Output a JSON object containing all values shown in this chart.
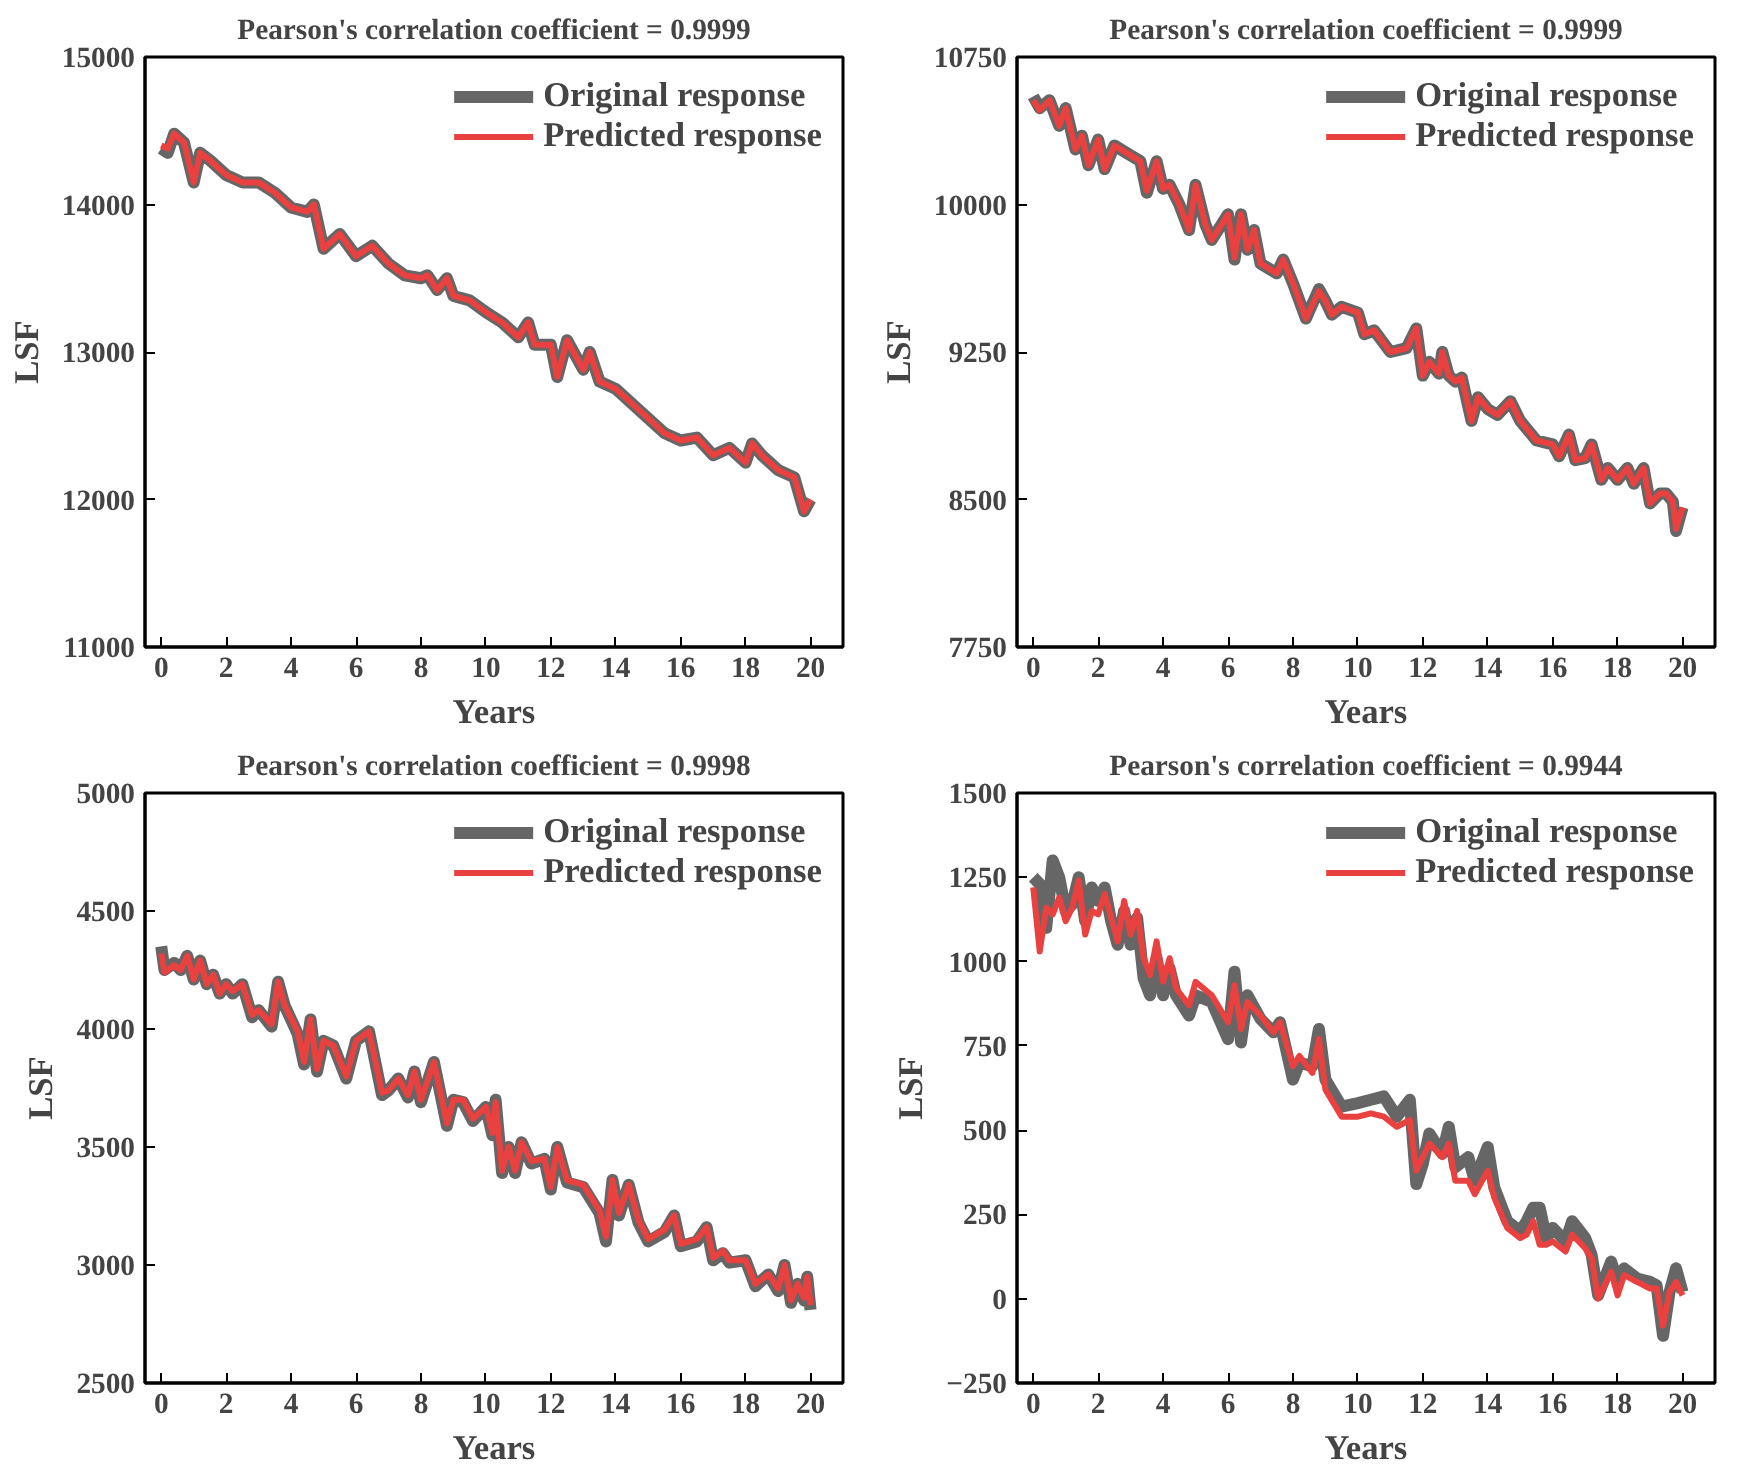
{
  "chart_data": [
    {
      "type": "line",
      "title": "Pearson's correlation coefficient = 0.9999",
      "xlabel": "Years",
      "ylabel": "LSF",
      "xlim": [
        -0.5,
        21
      ],
      "ylim": [
        11000,
        15000
      ],
      "xticks": [
        0,
        2,
        4,
        6,
        8,
        10,
        12,
        14,
        16,
        18,
        20
      ],
      "yticks": [
        11000,
        12000,
        13000,
        14000,
        15000
      ],
      "legend": "top right",
      "grid": false,
      "line_style": "solid",
      "series": [
        {
          "name": "Original response",
          "color": "#666666",
          "x": [
            0,
            0.2,
            0.4,
            0.7,
            1,
            1.2,
            1.5,
            2,
            2.5,
            3,
            3.5,
            4,
            4.5,
            4.7,
            5,
            5.5,
            6,
            6.5,
            7,
            7.5,
            8,
            8.2,
            8.5,
            8.8,
            9,
            9.5,
            10,
            10.5,
            11,
            11.3,
            11.5,
            12,
            12.2,
            12.5,
            13,
            13.2,
            13.5,
            14,
            14.5,
            15,
            15.5,
            16,
            16.5,
            17,
            17.5,
            18,
            18.2,
            18.5,
            19,
            19.5,
            19.8,
            20
          ],
          "values": [
            14380,
            14350,
            14480,
            14420,
            14150,
            14350,
            14300,
            14200,
            14150,
            14150,
            14080,
            13980,
            13950,
            14000,
            13700,
            13800,
            13650,
            13720,
            13600,
            13520,
            13500,
            13520,
            13420,
            13500,
            13380,
            13350,
            13270,
            13200,
            13100,
            13200,
            13050,
            13050,
            12830,
            13080,
            12880,
            13000,
            12800,
            12750,
            12650,
            12550,
            12450,
            12400,
            12420,
            12300,
            12350,
            12250,
            12380,
            12300,
            12200,
            12150,
            11920,
            12000
          ]
        },
        {
          "name": "Predicted response",
          "color": "#e8413f",
          "x": [
            0,
            0.2,
            0.4,
            0.7,
            1,
            1.2,
            1.5,
            2,
            2.5,
            3,
            3.5,
            4,
            4.5,
            4.7,
            5,
            5.5,
            6,
            6.5,
            7,
            7.5,
            8,
            8.2,
            8.5,
            8.8,
            9,
            9.5,
            10,
            10.5,
            11,
            11.3,
            11.5,
            12,
            12.2,
            12.5,
            13,
            13.2,
            13.5,
            14,
            14.5,
            15,
            15.5,
            16,
            16.5,
            17,
            17.5,
            18,
            18.2,
            18.5,
            19,
            19.5,
            19.8,
            20
          ],
          "values": [
            14400,
            14380,
            14480,
            14420,
            14150,
            14350,
            14300,
            14200,
            14150,
            14150,
            14080,
            13980,
            13950,
            14000,
            13700,
            13800,
            13650,
            13720,
            13600,
            13520,
            13500,
            13520,
            13420,
            13500,
            13380,
            13350,
            13270,
            13200,
            13100,
            13200,
            13050,
            13050,
            12830,
            13080,
            12880,
            13000,
            12800,
            12750,
            12650,
            12550,
            12450,
            12400,
            12420,
            12300,
            12350,
            12250,
            12380,
            12300,
            12200,
            12150,
            11920,
            12000
          ]
        }
      ]
    },
    {
      "type": "line",
      "title": "Pearson's correlation coefficient = 0.9999",
      "xlabel": "Years",
      "ylabel": "LSF",
      "xlim": [
        -0.5,
        21
      ],
      "ylim": [
        7750,
        10750
      ],
      "xticks": [
        0,
        2,
        4,
        6,
        8,
        10,
        12,
        14,
        16,
        18,
        20
      ],
      "yticks": [
        7750,
        8500,
        9250,
        10000,
        10750
      ],
      "legend": "top right",
      "grid": false,
      "line_style": "solid",
      "series": [
        {
          "name": "Original response",
          "color": "#666666",
          "x": [
            0,
            0.2,
            0.5,
            0.8,
            1,
            1.3,
            1.5,
            1.7,
            2,
            2.2,
            2.5,
            3,
            3.3,
            3.5,
            3.8,
            4,
            4.2,
            4.5,
            4.8,
            5,
            5.3,
            5.5,
            6,
            6.2,
            6.4,
            6.6,
            6.8,
            7,
            7.5,
            7.7,
            8,
            8.4,
            8.8,
            9,
            9.2,
            9.5,
            10,
            10.2,
            10.5,
            11,
            11.5,
            11.8,
            12,
            12.2,
            12.5,
            12.6,
            12.8,
            13,
            13.2,
            13.5,
            13.7,
            14,
            14.3,
            14.7,
            15,
            15.5,
            16,
            16.2,
            16.5,
            16.7,
            17,
            17.2,
            17.5,
            17.7,
            18,
            18.3,
            18.5,
            18.8,
            19,
            19.3,
            19.5,
            19.7,
            19.8,
            20
          ],
          "values": [
            10550,
            10490,
            10530,
            10400,
            10490,
            10280,
            10350,
            10200,
            10330,
            10180,
            10300,
            10250,
            10220,
            10060,
            10220,
            10080,
            10100,
            10000,
            9870,
            10100,
            9900,
            9820,
            9950,
            9720,
            9950,
            9770,
            9870,
            9700,
            9650,
            9720,
            9600,
            9420,
            9570,
            9510,
            9440,
            9480,
            9450,
            9340,
            9360,
            9250,
            9270,
            9370,
            9130,
            9200,
            9140,
            9250,
            9130,
            9100,
            9120,
            8900,
            9020,
            8960,
            8930,
            9000,
            8900,
            8800,
            8780,
            8720,
            8830,
            8700,
            8710,
            8780,
            8600,
            8660,
            8600,
            8660,
            8580,
            8660,
            8480,
            8530,
            8530,
            8490,
            8340,
            8460
          ]
        },
        {
          "name": "Predicted response",
          "color": "#e8413f",
          "x": [
            0,
            0.2,
            0.5,
            0.8,
            1,
            1.3,
            1.5,
            1.7,
            2,
            2.2,
            2.5,
            3,
            3.3,
            3.5,
            3.8,
            4,
            4.2,
            4.5,
            4.8,
            5,
            5.3,
            5.5,
            6,
            6.2,
            6.4,
            6.6,
            6.8,
            7,
            7.5,
            7.7,
            8,
            8.4,
            8.8,
            9,
            9.2,
            9.5,
            10,
            10.2,
            10.5,
            11,
            11.5,
            11.8,
            12,
            12.2,
            12.5,
            12.6,
            12.8,
            13,
            13.2,
            13.5,
            13.7,
            14,
            14.3,
            14.7,
            15,
            15.5,
            16,
            16.2,
            16.5,
            16.7,
            17,
            17.2,
            17.5,
            17.7,
            18,
            18.3,
            18.5,
            18.8,
            19,
            19.3,
            19.5,
            19.7,
            19.8,
            20
          ],
          "values": [
            10530,
            10480,
            10530,
            10400,
            10490,
            10280,
            10350,
            10200,
            10330,
            10180,
            10300,
            10250,
            10220,
            10070,
            10220,
            10080,
            10100,
            10000,
            9870,
            10100,
            9900,
            9820,
            9950,
            9730,
            9950,
            9770,
            9870,
            9700,
            9650,
            9720,
            9600,
            9420,
            9560,
            9510,
            9440,
            9480,
            9450,
            9340,
            9360,
            9250,
            9270,
            9370,
            9130,
            9200,
            9140,
            9250,
            9130,
            9100,
            9120,
            8900,
            9020,
            8960,
            8930,
            9000,
            8900,
            8800,
            8780,
            8720,
            8830,
            8700,
            8710,
            8780,
            8600,
            8660,
            8600,
            8660,
            8580,
            8660,
            8480,
            8530,
            8530,
            8490,
            8350,
            8460
          ]
        }
      ]
    },
    {
      "type": "line",
      "title": "Pearson's correlation coefficient = 0.9998",
      "xlabel": "Years",
      "ylabel": "LSF",
      "xlim": [
        -0.5,
        21
      ],
      "ylim": [
        2500,
        5000
      ],
      "xticks": [
        0,
        2,
        4,
        6,
        8,
        10,
        12,
        14,
        16,
        18,
        20
      ],
      "yticks": [
        2500,
        3000,
        3500,
        4000,
        4500,
        5000
      ],
      "legend": "top right",
      "grid": false,
      "line_style": "solid",
      "series": [
        {
          "name": "Original response",
          "color": "#666666",
          "x": [
            0,
            0.1,
            0.4,
            0.6,
            0.8,
            1,
            1.2,
            1.4,
            1.6,
            1.8,
            2,
            2.2,
            2.5,
            2.8,
            3,
            3.4,
            3.6,
            3.8,
            4.2,
            4.4,
            4.6,
            4.8,
            5,
            5.3,
            5.7,
            6,
            6.4,
            6.8,
            7,
            7.3,
            7.6,
            7.8,
            8,
            8.4,
            8.8,
            9,
            9.3,
            9.6,
            10,
            10.2,
            10.3,
            10.5,
            10.7,
            10.9,
            11.1,
            11.4,
            11.8,
            12,
            12.2,
            12.5,
            13,
            13.5,
            13.7,
            13.9,
            14.1,
            14.4,
            14.7,
            15,
            15.5,
            15.8,
            16,
            16.5,
            16.8,
            17,
            17.3,
            17.5,
            18,
            18.3,
            18.7,
            19,
            19.2,
            19.4,
            19.6,
            19.8,
            19.9,
            20
          ],
          "values": [
            4350,
            4250,
            4280,
            4250,
            4310,
            4210,
            4290,
            4190,
            4230,
            4150,
            4190,
            4150,
            4190,
            4050,
            4080,
            4010,
            4200,
            4100,
            3980,
            3850,
            4040,
            3820,
            3950,
            3930,
            3790,
            3950,
            3990,
            3720,
            3740,
            3790,
            3710,
            3820,
            3690,
            3860,
            3590,
            3700,
            3690,
            3610,
            3670,
            3550,
            3700,
            3390,
            3500,
            3390,
            3520,
            3430,
            3450,
            3320,
            3500,
            3350,
            3330,
            3220,
            3100,
            3360,
            3210,
            3340,
            3180,
            3100,
            3140,
            3210,
            3080,
            3100,
            3160,
            3020,
            3050,
            3010,
            3020,
            2910,
            2960,
            2890,
            3000,
            2840,
            2920,
            2850,
            2950,
            2810
          ]
        },
        {
          "name": "Predicted response",
          "color": "#e8413f",
          "x": [
            0,
            0.1,
            0.4,
            0.6,
            0.8,
            1,
            1.2,
            1.4,
            1.6,
            1.8,
            2,
            2.2,
            2.5,
            2.8,
            3,
            3.4,
            3.6,
            3.8,
            4.2,
            4.4,
            4.6,
            4.8,
            5,
            5.3,
            5.7,
            6,
            6.4,
            6.8,
            7,
            7.3,
            7.6,
            7.8,
            8,
            8.4,
            8.8,
            9,
            9.3,
            9.6,
            10,
            10.2,
            10.3,
            10.5,
            10.7,
            10.9,
            11.1,
            11.4,
            11.8,
            12,
            12.2,
            12.5,
            13,
            13.5,
            13.7,
            13.9,
            14.1,
            14.4,
            14.7,
            15,
            15.5,
            15.8,
            16,
            16.5,
            16.8,
            17,
            17.3,
            17.5,
            18,
            18.3,
            18.7,
            19,
            19.2,
            19.4,
            19.6,
            19.8,
            19.9,
            20
          ],
          "values": [
            4320,
            4240,
            4270,
            4250,
            4310,
            4210,
            4290,
            4190,
            4230,
            4150,
            4190,
            4160,
            4190,
            4060,
            4080,
            4020,
            4200,
            4100,
            3990,
            3860,
            4040,
            3830,
            3950,
            3930,
            3800,
            3950,
            3990,
            3730,
            3740,
            3790,
            3720,
            3820,
            3700,
            3860,
            3600,
            3700,
            3700,
            3620,
            3670,
            3560,
            3690,
            3400,
            3500,
            3400,
            3520,
            3440,
            3450,
            3330,
            3500,
            3360,
            3340,
            3230,
            3120,
            3360,
            3220,
            3340,
            3190,
            3110,
            3150,
            3210,
            3090,
            3110,
            3160,
            3030,
            3060,
            3020,
            3020,
            2920,
            2960,
            2900,
            3000,
            2850,
            2920,
            2860,
            2950,
            2830
          ]
        }
      ]
    },
    {
      "type": "line",
      "title": "Pearson's correlation coefficient = 0.9944",
      "xlabel": "Years",
      "ylabel": "LSF",
      "xlim": [
        -0.5,
        21
      ],
      "ylim": [
        -250,
        1500
      ],
      "xticks": [
        0,
        2,
        4,
        6,
        8,
        10,
        12,
        14,
        16,
        18,
        20
      ],
      "yticks": [
        -250,
        0,
        250,
        500,
        750,
        1000,
        1250,
        1500
      ],
      "legend": "top right",
      "grid": false,
      "line_style": "solid",
      "series": [
        {
          "name": "Original response",
          "color": "#666666",
          "x": [
            0,
            0.2,
            0.4,
            0.6,
            0.8,
            1,
            1.2,
            1.4,
            1.6,
            1.8,
            2,
            2.2,
            2.4,
            2.6,
            2.8,
            3,
            3.2,
            3.4,
            3.6,
            3.8,
            4,
            4.2,
            4.4,
            4.8,
            5,
            5.5,
            6,
            6.2,
            6.4,
            6.6,
            7,
            7.4,
            7.6,
            8,
            8.2,
            8.6,
            8.8,
            9,
            9.5,
            10,
            10.4,
            10.8,
            11.2,
            11.6,
            11.8,
            12,
            12.2,
            12.6,
            12.8,
            13,
            13.4,
            13.6,
            14,
            14.2,
            14.6,
            15,
            15.2,
            15.4,
            15.6,
            15.8,
            16,
            16.4,
            16.6,
            17,
            17.2,
            17.4,
            17.8,
            18,
            18.2,
            18.6,
            19,
            19.2,
            19.4,
            19.6,
            19.8,
            20
          ],
          "values": [
            1250,
            1230,
            1100,
            1300,
            1250,
            1150,
            1170,
            1250,
            1120,
            1220,
            1180,
            1220,
            1120,
            1050,
            1150,
            1050,
            1130,
            950,
            900,
            1010,
            900,
            980,
            900,
            840,
            900,
            880,
            770,
            970,
            760,
            900,
            830,
            790,
            820,
            650,
            700,
            690,
            800,
            650,
            570,
            580,
            590,
            600,
            540,
            590,
            340,
            400,
            490,
            430,
            510,
            390,
            420,
            350,
            450,
            330,
            230,
            200,
            230,
            270,
            270,
            180,
            210,
            170,
            230,
            180,
            130,
            10,
            110,
            50,
            90,
            60,
            50,
            40,
            -110,
            20,
            90,
            20
          ]
        },
        {
          "name": "Predicted response",
          "color": "#e8413f",
          "x": [
            0,
            0.2,
            0.4,
            0.6,
            0.8,
            1,
            1.2,
            1.4,
            1.6,
            1.8,
            2,
            2.2,
            2.4,
            2.6,
            2.8,
            3,
            3.2,
            3.4,
            3.6,
            3.8,
            4,
            4.2,
            4.4,
            4.8,
            5,
            5.5,
            6,
            6.2,
            6.4,
            6.6,
            7,
            7.4,
            7.6,
            8,
            8.2,
            8.6,
            8.8,
            9,
            9.5,
            10,
            10.4,
            10.8,
            11.2,
            11.6,
            11.8,
            12,
            12.2,
            12.6,
            12.8,
            13,
            13.4,
            13.6,
            14,
            14.2,
            14.6,
            15,
            15.2,
            15.4,
            15.6,
            15.8,
            16,
            16.4,
            16.6,
            17,
            17.2,
            17.4,
            17.8,
            18,
            18.2,
            18.6,
            19,
            19.2,
            19.4,
            19.6,
            19.8,
            20
          ],
          "values": [
            1220,
            1030,
            1160,
            1140,
            1190,
            1120,
            1160,
            1240,
            1080,
            1150,
            1140,
            1200,
            1130,
            1060,
            1180,
            1080,
            1150,
            1010,
            960,
            1060,
            940,
            1010,
            920,
            870,
            940,
            900,
            820,
            930,
            800,
            880,
            840,
            790,
            820,
            690,
            720,
            670,
            770,
            620,
            540,
            540,
            550,
            540,
            510,
            530,
            380,
            420,
            460,
            420,
            460,
            350,
            350,
            310,
            380,
            300,
            210,
            180,
            190,
            230,
            160,
            160,
            170,
            140,
            190,
            150,
            120,
            0,
            80,
            10,
            70,
            50,
            30,
            30,
            -80,
            20,
            50,
            10
          ]
        }
      ]
    }
  ]
}
